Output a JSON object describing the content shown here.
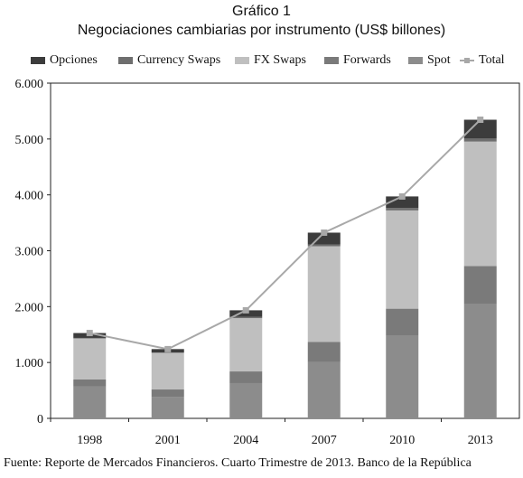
{
  "header": {
    "figure_label": "Gráfico 1",
    "title": "Negociaciones cambiarias por instrumento (US$ billones)"
  },
  "chart_data": {
    "type": "bar",
    "stacked": true,
    "categories": [
      "1998",
      "2001",
      "2004",
      "2007",
      "2010",
      "2013"
    ],
    "series": [
      {
        "name": "Spot",
        "color": "#8c8c8c",
        "values": [
          568,
          387,
          631,
          1005,
          1488,
          2047
        ]
      },
      {
        "name": "Forwards",
        "color": "#7a7a7a",
        "values": [
          128,
          130,
          209,
          362,
          475,
          679
        ]
      },
      {
        "name": "FX Swaps",
        "color": "#bfbfbf",
        "values": [
          734,
          656,
          954,
          1714,
          1759,
          2228
        ]
      },
      {
        "name": "Currency Swaps",
        "color": "#6e6e6e",
        "values": [
          10,
          7,
          21,
          31,
          43,
          54
        ]
      },
      {
        "name": "Opciones",
        "color": "#3c3c3c",
        "values": [
          87,
          60,
          119,
          212,
          207,
          337
        ]
      }
    ],
    "line_series": {
      "name": "Total",
      "color": "#a8a8a8",
      "values": [
        1527,
        1239,
        1934,
        3324,
        3971,
        5345
      ]
    },
    "legend": {
      "placement": "top",
      "order": [
        "Opciones",
        "Currency Swaps",
        "FX Swaps",
        "Forwards",
        "Spot",
        "Total"
      ],
      "labels": [
        "Opciones",
        "Currency Swaps",
        "FX Swaps",
        "Forwards",
        "Spot",
        "Total"
      ]
    },
    "yticks": [
      0,
      1000,
      2000,
      3000,
      4000,
      5000,
      6000
    ],
    "ytick_labels": [
      "0",
      "1.000",
      "2.000",
      "3.000",
      "4.000",
      "5.000",
      "6.000"
    ],
    "ylim": [
      0,
      6000
    ],
    "grid": false,
    "xlabel": "",
    "ylabel": ""
  },
  "footer": {
    "source": "Fuente: Reporte de Mercados Financieros. Cuarto Trimestre de 2013. Banco de la República"
  }
}
